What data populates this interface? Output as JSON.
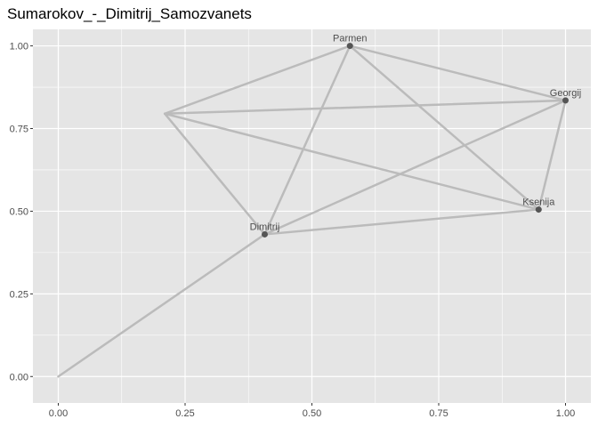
{
  "chart_data": {
    "type": "network",
    "title": "Sumarokov_-_Dimitrij_Samozvanets",
    "xlim": [
      -0.05,
      1.05
    ],
    "ylim": [
      -0.08,
      1.05
    ],
    "x_ticks": [
      0.0,
      0.25,
      0.5,
      0.75,
      1.0
    ],
    "x_tick_labels": [
      "0.00",
      "0.25",
      "0.50",
      "0.75",
      "1.00"
    ],
    "y_ticks": [
      0.0,
      0.25,
      0.5,
      0.75,
      1.0
    ],
    "y_tick_labels": [
      "0.00",
      "0.25",
      "0.50",
      "0.75",
      "1.00"
    ],
    "grid": true,
    "nodes": [
      {
        "id": "origin",
        "label": "",
        "x": 0.0,
        "y": 0.0,
        "point": false
      },
      {
        "id": "unnamed",
        "label": "",
        "x": 0.21,
        "y": 0.795,
        "point": false
      },
      {
        "id": "Parmen",
        "label": "Parmen",
        "x": 0.575,
        "y": 1.0,
        "point": true
      },
      {
        "id": "Georgij",
        "label": "Georgij",
        "x": 1.0,
        "y": 0.835,
        "point": true
      },
      {
        "id": "Ksenija",
        "label": "Ksenija",
        "x": 0.947,
        "y": 0.505,
        "point": true
      },
      {
        "id": "Dimitrij",
        "label": "Dimitrij",
        "x": 0.407,
        "y": 0.43,
        "point": true
      }
    ],
    "edges": [
      [
        "origin",
        "Dimitrij"
      ],
      [
        "unnamed",
        "Parmen"
      ],
      [
        "unnamed",
        "Georgij"
      ],
      [
        "unnamed",
        "Ksenija"
      ],
      [
        "unnamed",
        "Dimitrij"
      ],
      [
        "Parmen",
        "Georgij"
      ],
      [
        "Parmen",
        "Ksenija"
      ],
      [
        "Parmen",
        "Dimitrij"
      ],
      [
        "Georgij",
        "Ksenija"
      ],
      [
        "Georgij",
        "Dimitrij"
      ],
      [
        "Ksenija",
        "Dimitrij"
      ]
    ],
    "colors": {
      "panel": "#e5e5e5",
      "grid": "#ffffff",
      "edge": "#bbbbbb",
      "node": "#555555"
    }
  }
}
